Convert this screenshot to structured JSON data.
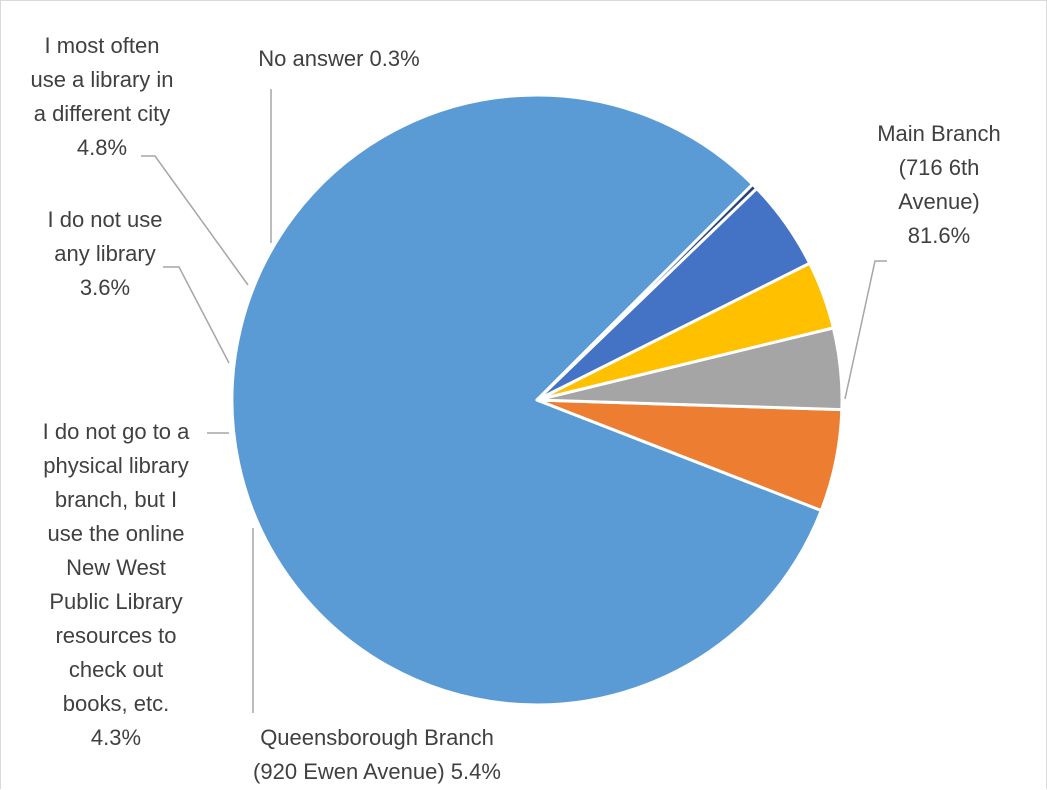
{
  "chart_data": {
    "type": "pie",
    "title": "",
    "slices": [
      {
        "label_lines": [
          "Main Branch",
          "(716 6th",
          "Avenue)"
        ],
        "percent_label": "81.6%",
        "value": 81.6,
        "color": "#5b9bd5"
      },
      {
        "label_lines": [
          "Queensborough Branch",
          "(920 Ewen Avenue)"
        ],
        "percent_label": "5.4%",
        "value": 5.4,
        "color": "#ed7d31"
      },
      {
        "label_lines": [
          "I do not go to a",
          "physical library",
          "branch, but I",
          "use the online",
          "New West",
          "Public Library",
          "resources to",
          "check out",
          "books, etc."
        ],
        "percent_label": "4.3%",
        "value": 4.3,
        "color": "#a5a5a5"
      },
      {
        "label_lines": [
          "I do not use",
          "any library"
        ],
        "percent_label": "3.6%",
        "value": 3.6,
        "color": "#ffc000"
      },
      {
        "label_lines": [
          "I most often",
          "use a library in",
          "a different city"
        ],
        "percent_label": "4.8%",
        "value": 4.8,
        "color": "#4472c4"
      },
      {
        "label_lines": [
          "No answer"
        ],
        "percent_label": "0.3%",
        "value": 0.3,
        "color": "#264478"
      }
    ]
  }
}
